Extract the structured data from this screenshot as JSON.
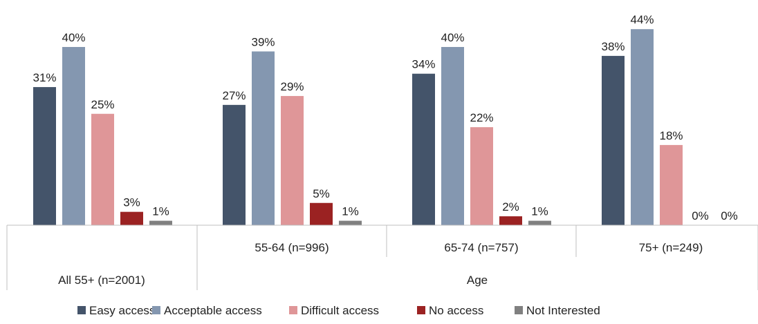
{
  "chart_data": {
    "type": "bar",
    "title": "",
    "xlabel": "",
    "ylabel": "",
    "ylim": [
      0,
      46
    ],
    "grid": false,
    "legend_position": "bottom",
    "value_suffix": "%",
    "groups": [
      {
        "label": "All 55+ (n=2001)"
      },
      {
        "label": "55-64 (n=996)"
      },
      {
        "label": "65-74 (n=757)"
      },
      {
        "label": "75+ (n=249)"
      }
    ],
    "parent_group_label": "Age",
    "series": [
      {
        "name": "Easy access",
        "color": "#44546a",
        "values": [
          31,
          27,
          34,
          38
        ]
      },
      {
        "name": "Acceptable access",
        "color": "#8497b0",
        "values": [
          40,
          39,
          40,
          44
        ]
      },
      {
        "name": "Difficult access",
        "color": "#df9698",
        "values": [
          25,
          29,
          22,
          18
        ]
      },
      {
        "name": "No access",
        "color": "#9b2222",
        "values": [
          3,
          5,
          2,
          0
        ]
      },
      {
        "name": "Not Interested",
        "color": "#808080",
        "values": [
          1,
          1,
          1,
          0
        ]
      }
    ]
  }
}
